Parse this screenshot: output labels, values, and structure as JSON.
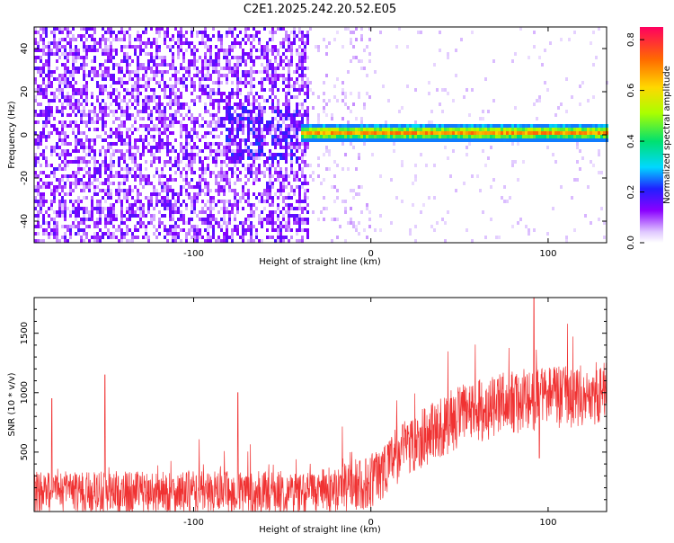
{
  "title": "C2E1.2025.242.20.52.E05",
  "chart_data": [
    {
      "type": "heatmap",
      "name": "spectrogram",
      "xlabel": "Height of straight line (km)",
      "ylabel": "Frequency (Hz)",
      "xlim": [
        -190,
        133
      ],
      "ylim": [
        -50,
        50
      ],
      "xticks": [
        -100,
        0,
        100
      ],
      "xtick_labels": [
        "-100",
        "0",
        "100"
      ],
      "yticks": [
        -40,
        -20,
        0,
        20,
        40
      ],
      "ytick_labels": [
        "-40",
        "-20",
        "0",
        "20",
        "40"
      ],
      "noise_region": {
        "x_range": [
          -190,
          -35
        ],
        "freq_range": [
          -50,
          50
        ],
        "amplitude": 0.12
      },
      "transition_region": {
        "x_range": [
          -35,
          0
        ],
        "amplitude": 0.05
      },
      "signal_band": {
        "x_range": [
          -35,
          133
        ],
        "freq_center": 1,
        "freq_halfwidth": 4,
        "amplitude": 0.9
      },
      "colorbar": {
        "label": "Normalized spectral amplitude",
        "range": [
          0,
          0.85
        ],
        "ticks": [
          0,
          0.2,
          0.4,
          0.6,
          0.8
        ],
        "tick_labels": [
          "0.0",
          "0.2",
          "0.4",
          "0.6",
          "0.8"
        ]
      }
    },
    {
      "type": "line",
      "name": "snr",
      "xlabel": "Height of straight line (km)",
      "ylabel": "SNR (10 * v/v)",
      "xlim": [
        -190,
        133
      ],
      "ylim": [
        0,
        1800
      ],
      "xticks": [
        -100,
        0,
        100
      ],
      "xtick_labels": [
        "-100",
        "0",
        "100"
      ],
      "yticks": [
        500,
        1000,
        1500
      ],
      "ytick_labels": [
        "500",
        "1000",
        "1500"
      ],
      "color": "#f03232",
      "envelope": {
        "x": [
          -190,
          -150,
          -100,
          -50,
          -30,
          0,
          20,
          50,
          80,
          100,
          133
        ],
        "base": [
          160,
          160,
          160,
          160,
          160,
          250,
          550,
          800,
          920,
          960,
          1000
        ],
        "spread": [
          200,
          200,
          200,
          200,
          200,
          260,
          280,
          300,
          300,
          300,
          300
        ]
      },
      "spikes": [
        {
          "x": -180,
          "y": 950
        },
        {
          "x": -150,
          "y": 1150
        },
        {
          "x": -75,
          "y": 1000
        },
        {
          "x": 92,
          "y": 1800
        },
        {
          "x": 95,
          "y": 450
        }
      ]
    }
  ]
}
